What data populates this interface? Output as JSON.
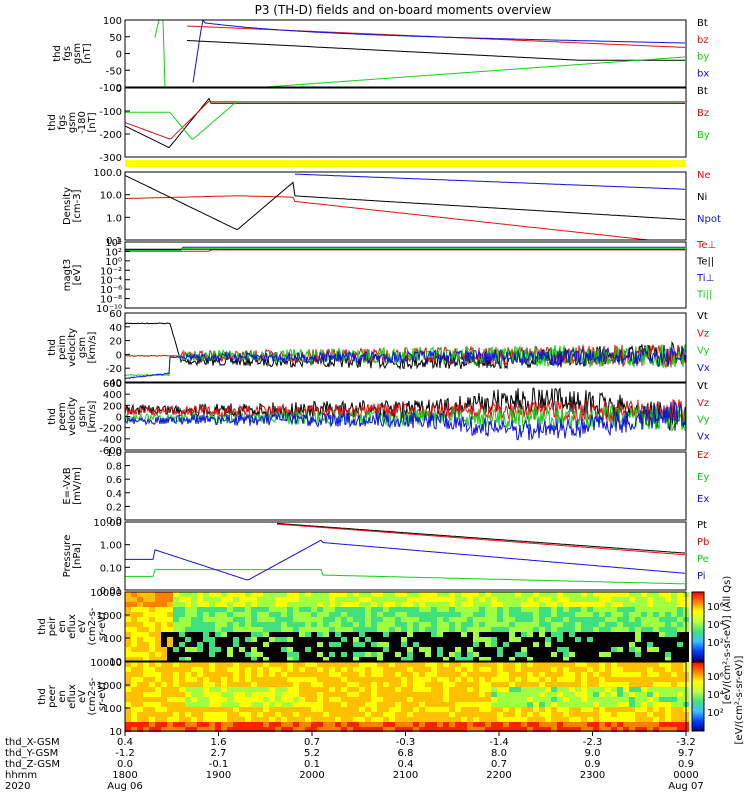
{
  "title": "P3 (TH-D) fields and on-board moments overview",
  "colors": {
    "black": "#000000",
    "red": "#e01010",
    "green": "#10d010",
    "blue": "#1010e0",
    "yellow": "#ffff00"
  },
  "chart_data": [
    {
      "id": "fgs",
      "type": "line",
      "ylabel": [
        "thd",
        "fgs",
        "gsm",
        "[nT]"
      ],
      "yticks": [
        "100",
        "50",
        "0",
        "-50",
        "-100"
      ],
      "ylim": [
        -100,
        100
      ],
      "series": [
        {
          "name": "Bt",
          "color": "black"
        },
        {
          "name": "bz",
          "color": "red"
        },
        {
          "name": "by",
          "color": "green"
        },
        {
          "name": "bx",
          "color": "blue"
        }
      ]
    },
    {
      "id": "fgs2",
      "type": "line",
      "ylabel": [
        "thd",
        "fgs",
        "gsm",
        "-180",
        "[nT]"
      ],
      "yticks": [
        "0",
        "-100",
        "-200",
        "-300"
      ],
      "ylim": [
        -350,
        20
      ],
      "series": [
        {
          "name": "Bt",
          "color": "black"
        },
        {
          "name": "Bz",
          "color": "red"
        },
        {
          "name": "By",
          "color": "green"
        }
      ]
    },
    {
      "id": "density",
      "type": "line",
      "ylabel": [
        "Density",
        "[cm-3]"
      ],
      "log": true,
      "yticks": [
        "100.0",
        "10.0",
        "1.0",
        "0.1"
      ],
      "ylim": [
        0.05,
        200
      ],
      "series": [
        {
          "name": "Ne",
          "color": "red"
        },
        {
          "name": "Ni",
          "color": "black"
        },
        {
          "name": "Npot",
          "color": "blue"
        }
      ]
    },
    {
      "id": "temp",
      "type": "line",
      "ylabel": [
        "magt3",
        "[eV]"
      ],
      "log": true,
      "yticks": [
        "10⁴",
        "10²",
        "10⁰",
        "10⁻²",
        "10⁻⁴",
        "10⁻⁶",
        "10⁻⁸",
        "10⁻¹⁰"
      ],
      "ylim": [
        -10,
        4
      ],
      "series": [
        {
          "name": "Te⊥",
          "color": "red"
        },
        {
          "name": "Te||",
          "color": "black"
        },
        {
          "name": "Ti⊥",
          "color": "blue"
        },
        {
          "name": "Ti||",
          "color": "green"
        }
      ]
    },
    {
      "id": "peim",
      "type": "line",
      "ylabel": [
        "thd",
        "peim",
        "velocity",
        "gsm",
        "[km/s]"
      ],
      "yticks": [
        "60",
        "40",
        "20",
        "0",
        "-20",
        "-40"
      ],
      "ylim": [
        -40,
        60
      ],
      "series": [
        {
          "name": "Vt",
          "color": "black"
        },
        {
          "name": "Vz",
          "color": "red"
        },
        {
          "name": "Vy",
          "color": "green"
        },
        {
          "name": "Vx",
          "color": "blue"
        }
      ]
    },
    {
      "id": "peem",
      "type": "line",
      "ylabel": [
        "thd",
        "peem",
        "velocity",
        "gsm",
        "[km/s]"
      ],
      "yticks": [
        "600",
        "400",
        "200",
        "0",
        "-200",
        "-400",
        "-600"
      ],
      "ylim": [
        -600,
        600
      ],
      "series": [
        {
          "name": "Vt",
          "color": "black"
        },
        {
          "name": "Vz",
          "color": "red"
        },
        {
          "name": "Vy",
          "color": "green"
        },
        {
          "name": "Vx",
          "color": "blue"
        }
      ]
    },
    {
      "id": "efield",
      "type": "line",
      "ylabel": [
        "E=-VxB",
        "[mV/m]"
      ],
      "yticks": [
        "1.0",
        "0.8",
        "0.6",
        "0.4",
        "0.2",
        "0.0"
      ],
      "ylim": [
        0,
        1
      ],
      "series": [
        {
          "name": "Ez",
          "color": "red"
        },
        {
          "name": "Ey",
          "color": "green"
        },
        {
          "name": "Ex",
          "color": "blue"
        }
      ]
    },
    {
      "id": "pressure",
      "type": "line",
      "ylabel": [
        "Pressure",
        "[nPa]"
      ],
      "log": true,
      "yticks": [
        "10.00",
        "1.00",
        "0.10",
        "0.01"
      ],
      "ylim": [
        0.005,
        30
      ],
      "series": [
        {
          "name": "Pt",
          "color": "black"
        },
        {
          "name": "Pb",
          "color": "red"
        },
        {
          "name": "Pe",
          "color": "green"
        },
        {
          "name": "Pi",
          "color": "blue"
        }
      ]
    },
    {
      "id": "peir",
      "type": "heatmap",
      "ylabel": [
        "thd",
        "peir",
        "en",
        "eflux",
        "eV",
        "(cm2-s-",
        "sr-eV)"
      ],
      "yticks": [
        "10000",
        "1000",
        "100",
        "10"
      ],
      "ylim": [
        5,
        20000
      ]
    },
    {
      "id": "peer",
      "type": "heatmap",
      "ylabel": [
        "thd",
        "peer",
        "en",
        "eflux",
        "eV",
        "(cm2-s-",
        "sr-eV)"
      ],
      "yticks": [
        "10000",
        "1000",
        "100",
        "10"
      ],
      "ylim": [
        5,
        20000
      ]
    }
  ],
  "colorbar": {
    "ticks": [
      "10⁶",
      "10⁴",
      "10²"
    ],
    "label": "[eV/(cm²-s-sr-eV)] (All Qs)",
    "label2": "[eV/(cm²-s-sr-eV)]"
  },
  "xaxis": {
    "rows": [
      {
        "label": "thd_X-GSM",
        "values": [
          "0.4",
          "1.6",
          "0.7",
          "-0.3",
          "-1.4",
          "-2.3",
          "-3.2"
        ]
      },
      {
        "label": "thd_Y-GSM",
        "values": [
          "-1.2",
          "2.7",
          "5.2",
          "6.8",
          "8.0",
          "9.0",
          "9.7"
        ]
      },
      {
        "label": "thd_Z-GSM",
        "values": [
          "0.0",
          "-0.1",
          "0.1",
          "0.4",
          "0.7",
          "0.9",
          "0.9"
        ]
      },
      {
        "label": "hhmm",
        "values": [
          "1800",
          "1900",
          "2000",
          "2100",
          "2200",
          "2300",
          "0000"
        ]
      },
      {
        "label": "2020",
        "values": [
          "Aug 06",
          "",
          "",
          "",
          "",
          "",
          "Aug 07"
        ]
      }
    ]
  }
}
